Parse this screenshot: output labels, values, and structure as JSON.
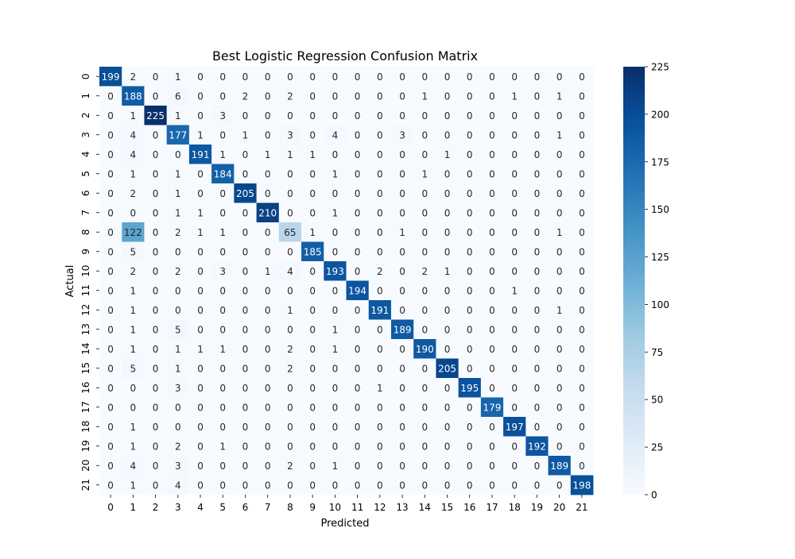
{
  "chart_data": {
    "type": "heatmap",
    "title": "Best Logistic Regression Confusion Matrix",
    "xlabel": "Predicted",
    "ylabel": "Actual",
    "x_tick_labels": [
      "0",
      "1",
      "2",
      "3",
      "4",
      "5",
      "6",
      "7",
      "8",
      "9",
      "10",
      "11",
      "12",
      "13",
      "14",
      "15",
      "16",
      "17",
      "18",
      "19",
      "20",
      "21"
    ],
    "y_tick_labels": [
      "0",
      "1",
      "2",
      "3",
      "4",
      "5",
      "6",
      "7",
      "8",
      "9",
      "10",
      "11",
      "12",
      "13",
      "14",
      "15",
      "16",
      "17",
      "18",
      "19",
      "20",
      "21"
    ],
    "matrix": [
      [
        199,
        2,
        0,
        1,
        0,
        0,
        0,
        0,
        0,
        0,
        0,
        0,
        0,
        0,
        0,
        0,
        0,
        0,
        0,
        0,
        0,
        0
      ],
      [
        0,
        188,
        0,
        6,
        0,
        0,
        2,
        0,
        2,
        0,
        0,
        0,
        0,
        0,
        1,
        0,
        0,
        0,
        1,
        0,
        1,
        0
      ],
      [
        0,
        1,
        225,
        1,
        0,
        3,
        0,
        0,
        0,
        0,
        0,
        0,
        0,
        0,
        0,
        0,
        0,
        0,
        0,
        0,
        0,
        0
      ],
      [
        0,
        4,
        0,
        177,
        1,
        0,
        1,
        0,
        3,
        0,
        4,
        0,
        0,
        3,
        0,
        0,
        0,
        0,
        0,
        0,
        1,
        0
      ],
      [
        0,
        4,
        0,
        0,
        191,
        1,
        0,
        1,
        1,
        1,
        0,
        0,
        0,
        0,
        0,
        1,
        0,
        0,
        0,
        0,
        0,
        0
      ],
      [
        0,
        1,
        0,
        1,
        0,
        184,
        0,
        0,
        0,
        0,
        1,
        0,
        0,
        0,
        1,
        0,
        0,
        0,
        0,
        0,
        0,
        0
      ],
      [
        0,
        2,
        0,
        1,
        0,
        0,
        205,
        0,
        0,
        0,
        0,
        0,
        0,
        0,
        0,
        0,
        0,
        0,
        0,
        0,
        0,
        0
      ],
      [
        0,
        0,
        0,
        1,
        1,
        0,
        0,
        210,
        0,
        0,
        1,
        0,
        0,
        0,
        0,
        0,
        0,
        0,
        0,
        0,
        0,
        0
      ],
      [
        0,
        122,
        0,
        2,
        1,
        1,
        0,
        0,
        65,
        1,
        0,
        0,
        0,
        1,
        0,
        0,
        0,
        0,
        0,
        0,
        1,
        0
      ],
      [
        0,
        5,
        0,
        0,
        0,
        0,
        0,
        0,
        0,
        185,
        0,
        0,
        0,
        0,
        0,
        0,
        0,
        0,
        0,
        0,
        0,
        0
      ],
      [
        0,
        2,
        0,
        2,
        0,
        3,
        0,
        1,
        4,
        0,
        193,
        0,
        2,
        0,
        2,
        1,
        0,
        0,
        0,
        0,
        0,
        0
      ],
      [
        0,
        1,
        0,
        0,
        0,
        0,
        0,
        0,
        0,
        0,
        0,
        194,
        0,
        0,
        0,
        0,
        0,
        0,
        1,
        0,
        0,
        0
      ],
      [
        0,
        1,
        0,
        0,
        0,
        0,
        0,
        0,
        1,
        0,
        0,
        0,
        191,
        0,
        0,
        0,
        0,
        0,
        0,
        0,
        1,
        0
      ],
      [
        0,
        1,
        0,
        5,
        0,
        0,
        0,
        0,
        0,
        0,
        1,
        0,
        0,
        189,
        0,
        0,
        0,
        0,
        0,
        0,
        0,
        0
      ],
      [
        0,
        1,
        0,
        1,
        1,
        1,
        0,
        0,
        2,
        0,
        1,
        0,
        0,
        0,
        190,
        0,
        0,
        0,
        0,
        0,
        0,
        0
      ],
      [
        0,
        5,
        0,
        1,
        0,
        0,
        0,
        0,
        2,
        0,
        0,
        0,
        0,
        0,
        0,
        205,
        0,
        0,
        0,
        0,
        0,
        0
      ],
      [
        0,
        0,
        0,
        3,
        0,
        0,
        0,
        0,
        0,
        0,
        0,
        0,
        1,
        0,
        0,
        0,
        195,
        0,
        0,
        0,
        0,
        0
      ],
      [
        0,
        0,
        0,
        0,
        0,
        0,
        0,
        0,
        0,
        0,
        0,
        0,
        0,
        0,
        0,
        0,
        0,
        179,
        0,
        0,
        0,
        0
      ],
      [
        0,
        1,
        0,
        0,
        0,
        0,
        0,
        0,
        0,
        0,
        0,
        0,
        0,
        0,
        0,
        0,
        0,
        0,
        197,
        0,
        0,
        0
      ],
      [
        0,
        1,
        0,
        2,
        0,
        1,
        0,
        0,
        0,
        0,
        0,
        0,
        0,
        0,
        0,
        0,
        0,
        0,
        0,
        192,
        0,
        0
      ],
      [
        0,
        4,
        0,
        3,
        0,
        0,
        0,
        0,
        2,
        0,
        1,
        0,
        0,
        0,
        0,
        0,
        0,
        0,
        0,
        0,
        189,
        0
      ],
      [
        0,
        1,
        0,
        4,
        0,
        0,
        0,
        0,
        0,
        0,
        0,
        0,
        0,
        0,
        0,
        0,
        0,
        0,
        0,
        0,
        0,
        198
      ]
    ],
    "colorbar": {
      "min": 0,
      "max": 225,
      "ticks": [
        0,
        25,
        50,
        75,
        100,
        125,
        150,
        175,
        200,
        225
      ],
      "colormap": "Blues",
      "colormap_stops": [
        "#f7fbff",
        "#deebf7",
        "#c6dbef",
        "#9ecae1",
        "#6baed6",
        "#4292c6",
        "#2171b5",
        "#08519c",
        "#08306b"
      ]
    },
    "annotations": "cell values shown in every cell",
    "text_light": "#ffffff",
    "text_dark": "#262626"
  }
}
